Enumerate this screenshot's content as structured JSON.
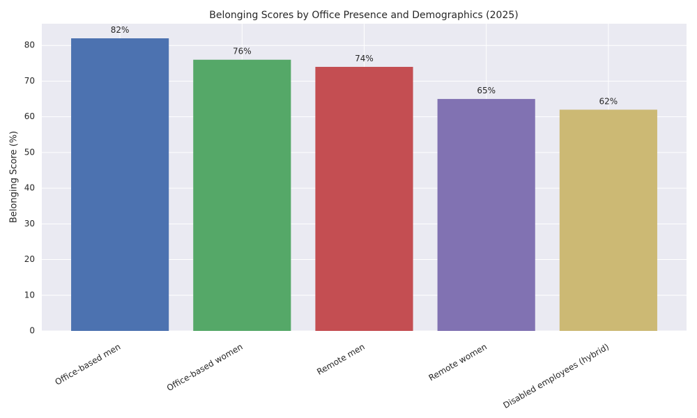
{
  "chart_data": {
    "type": "bar",
    "title": "Belonging Scores by Office Presence and Demographics (2025)",
    "y_label": "Belonging Score (%)",
    "categories": [
      "Office-based men",
      "Office-based women",
      "Remote men",
      "Remote women",
      "Disabled employees (hybrid)"
    ],
    "values": [
      82,
      76,
      74,
      65,
      62
    ],
    "value_labels": [
      "82%",
      "76%",
      "74%",
      "65%",
      "62%"
    ],
    "colors": [
      "#4c72b0",
      "#55a868",
      "#c44e52",
      "#8172b2",
      "#ccb974"
    ],
    "ylim": [
      0,
      86.1
    ],
    "yticks": [
      0,
      10,
      20,
      30,
      40,
      50,
      60,
      70,
      80
    ],
    "grid": true
  }
}
